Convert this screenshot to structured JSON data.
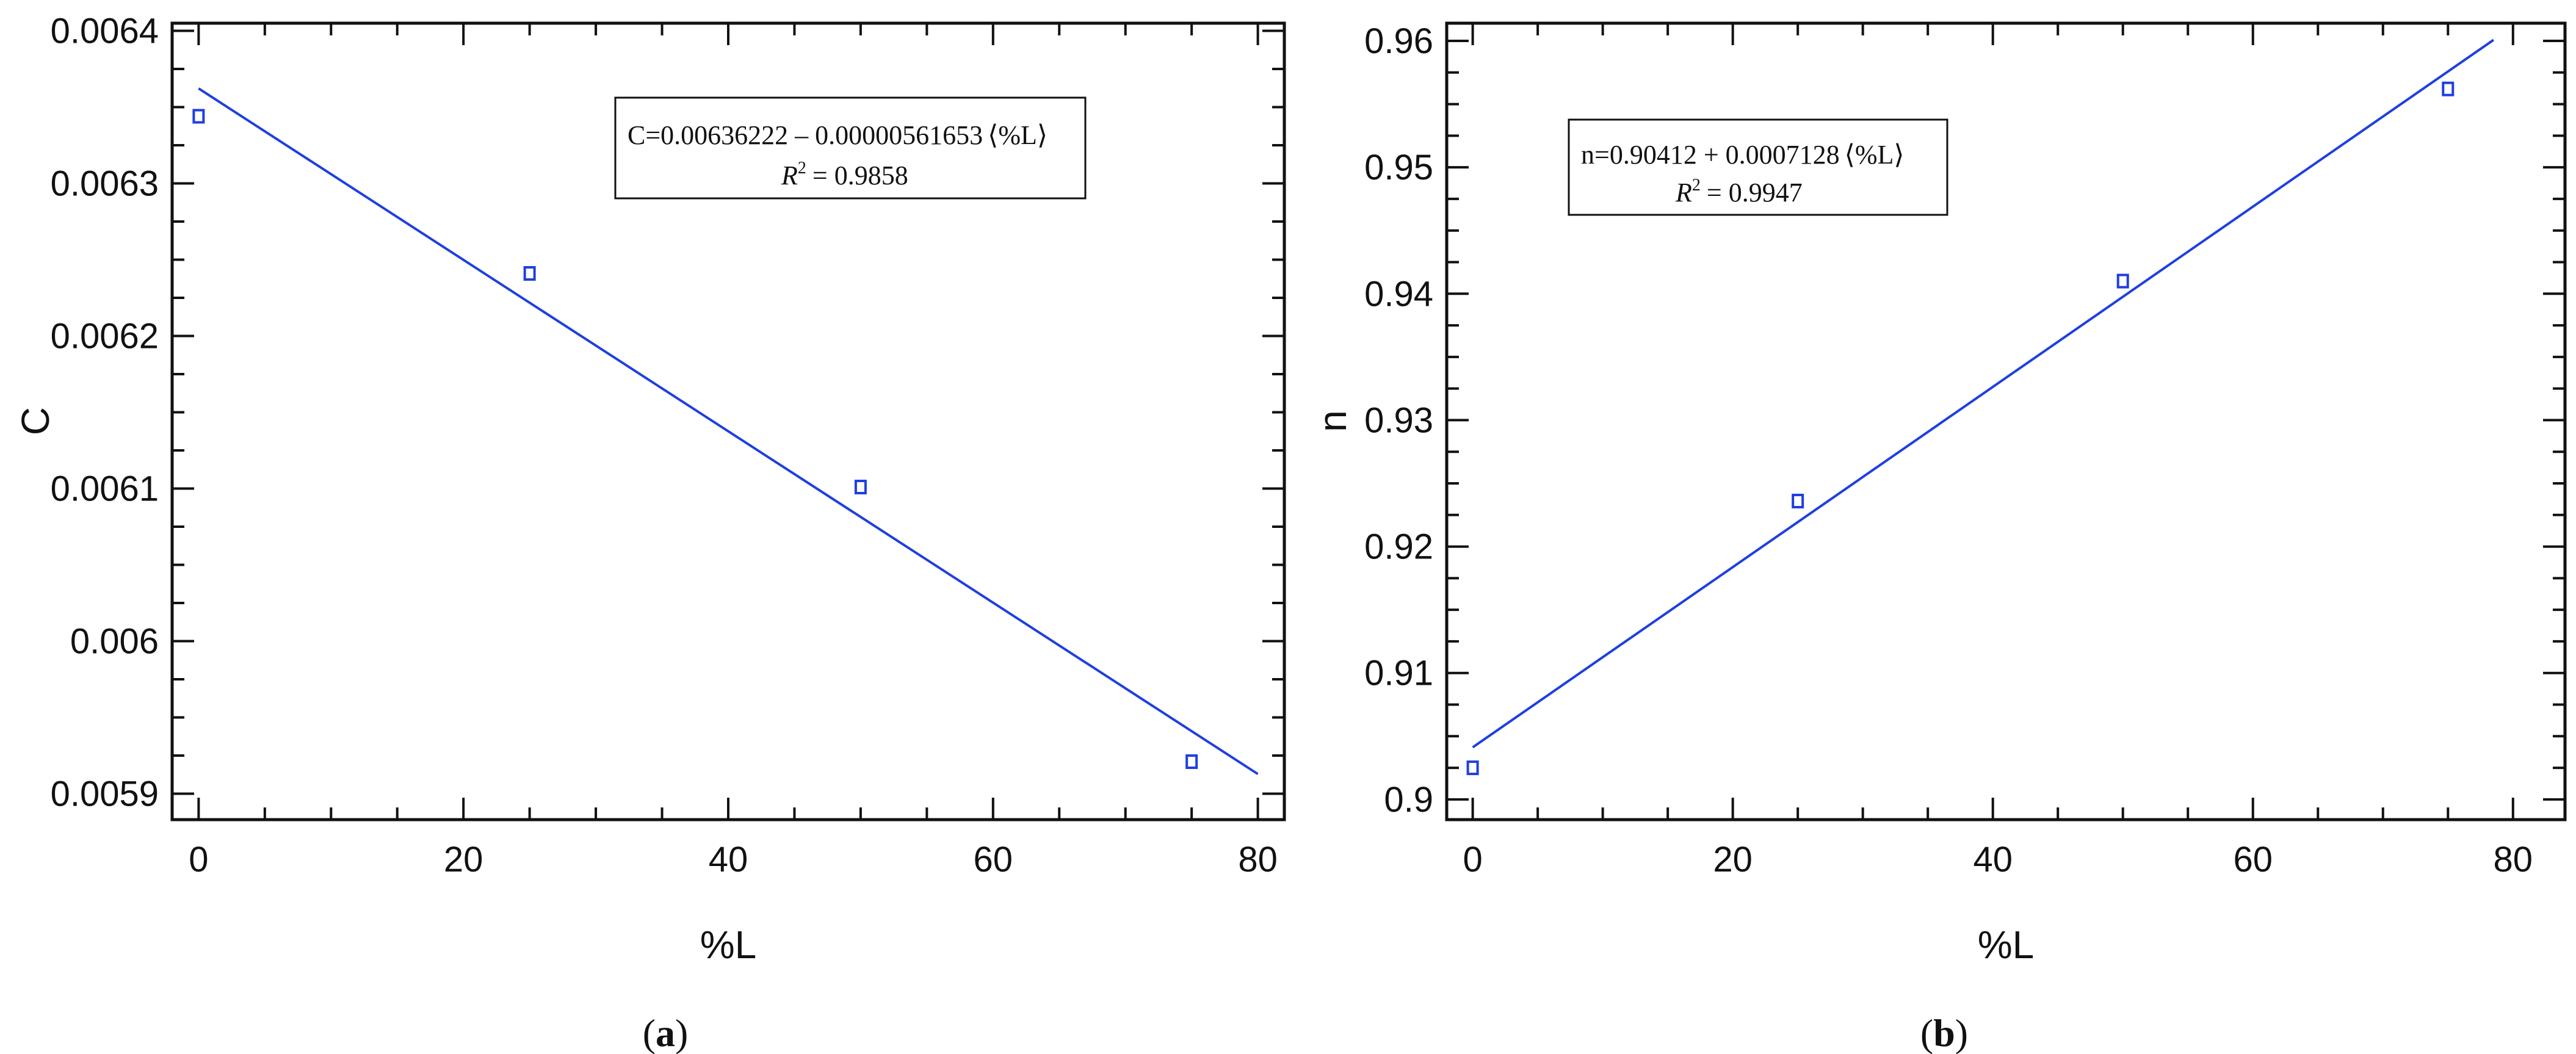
{
  "chart_data": [
    {
      "panel_label": "(a)",
      "panel_label_letter": "a",
      "type": "scatter",
      "xlabel": "%L",
      "ylabel": "C",
      "xlim": [
        -2,
        82
      ],
      "ylim": [
        0.005883,
        0.006405
      ],
      "x_ticks": [
        0,
        20,
        40,
        60,
        80
      ],
      "y_ticks": [
        0.0059,
        0.006,
        0.0061,
        0.0062,
        0.0063,
        0.0064
      ],
      "y_tick_labels": [
        "0.0059",
        "0.006",
        "0.0061",
        "0.0062",
        "0.0063",
        "0.0064"
      ],
      "grid": false,
      "colors": {
        "series": "#1f3fe0",
        "axes": "#111111"
      },
      "series": [
        {
          "x": [
            0,
            25,
            50,
            75
          ],
          "y": [
            0.006344,
            0.006241,
            0.006101,
            0.005921
          ]
        }
      ],
      "fit": {
        "intercept": 0.00636222,
        "slope": -5.61653e-06,
        "x_range": [
          0,
          80
        ]
      },
      "annotation": {
        "equation": "C=0.00636222 – 0.00000561653",
        "variable": "%L",
        "r2_symbol": "R",
        "r2_value": "= 0.9858",
        "position": "top-right"
      }
    },
    {
      "panel_label": "(b)",
      "panel_label_letter": "b",
      "type": "scatter",
      "xlabel": "%L",
      "ylabel": "n",
      "xlim": [
        -2,
        84
      ],
      "ylim": [
        0.8984,
        0.9614
      ],
      "x_ticks": [
        0,
        20,
        40,
        60,
        80
      ],
      "y_ticks": [
        0.9,
        0.91,
        0.92,
        0.93,
        0.94,
        0.95,
        0.96
      ],
      "y_tick_labels": [
        "0.9",
        "0.91",
        "0.92",
        "0.93",
        "0.94",
        "0.95",
        "0.96"
      ],
      "grid": false,
      "colors": {
        "series": "#1f3fe0",
        "axes": "#111111"
      },
      "series": [
        {
          "x": [
            0,
            25,
            50,
            75
          ],
          "y": [
            0.9025,
            0.9236,
            0.941,
            0.9562
          ]
        }
      ],
      "fit": {
        "intercept": 0.90412,
        "slope": 0.0007128,
        "x_range": [
          0,
          78.5
        ]
      },
      "annotation": {
        "equation": "n=0.90412 + 0.0007128",
        "variable": "%L",
        "r2_symbol": "R",
        "r2_value": "= 0.9947",
        "position": "top-left"
      }
    }
  ]
}
